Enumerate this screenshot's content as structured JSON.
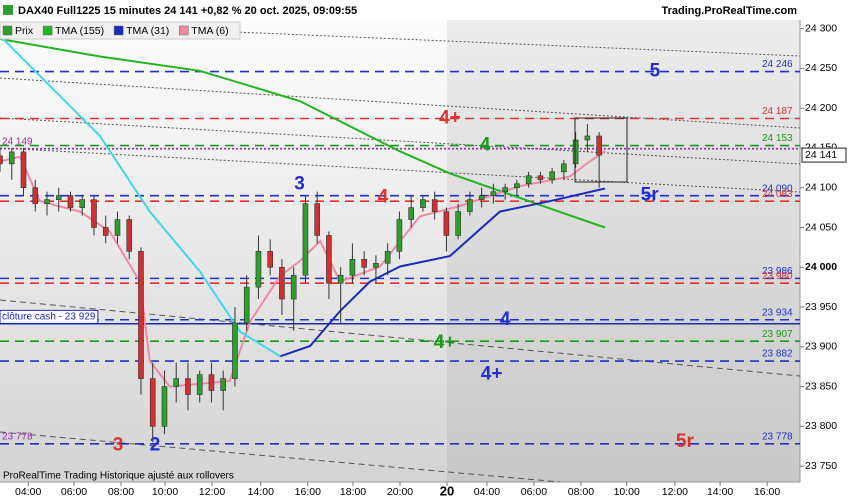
{
  "chart_data": {
    "type": "candlestick",
    "title": "DAX40 Full1225 15 minutes 24 141 +0,82 % 20 oct. 2025, 09:09:55",
    "source": "Trading.ProRealTime.com",
    "footer": "ProRealTime Trading  Historique ajusté aux rollovers",
    "xlim": [
      0,
      136.2
    ],
    "xticks": [
      {
        "value": 4.8,
        "label": "04:00"
      },
      {
        "value": 12.6,
        "label": "06:00"
      },
      {
        "value": 20.6,
        "label": "08:00"
      },
      {
        "value": 28.1,
        "label": "10:00"
      },
      {
        "value": 36.1,
        "label": "12:00"
      },
      {
        "value": 44.4,
        "label": "14:00"
      },
      {
        "value": 52.4,
        "label": "16:00"
      },
      {
        "value": 60.1,
        "label": "18:00"
      },
      {
        "value": 68.1,
        "label": "20:00"
      },
      {
        "value": 76.1,
        "label": "20"
      },
      {
        "value": 82.9,
        "label": "04:00"
      },
      {
        "value": 90.9,
        "label": "06:00"
      },
      {
        "value": 98.9,
        "label": "08:00"
      },
      {
        "value": 106.7,
        "label": "10:00"
      },
      {
        "value": 114.9,
        "label": "12:00"
      },
      {
        "value": 122.6,
        "label": "14:00"
      },
      {
        "value": 130.6,
        "label": "16:00"
      }
    ],
    "ylim": [
      23730,
      24336
    ],
    "yticks": [
      {
        "value": 24300,
        "label": "24 300"
      },
      {
        "value": 24250,
        "label": "24 250"
      },
      {
        "value": 24200,
        "label": "24 200"
      },
      {
        "value": 24150,
        "label": "24 150"
      },
      {
        "value": 24100,
        "label": "24 100"
      },
      {
        "value": 24050,
        "label": "24 050"
      },
      {
        "value": 24000,
        "label": "24 000"
      },
      {
        "value": 23950,
        "label": "23 950"
      },
      {
        "value": 23900,
        "label": "23 900"
      },
      {
        "value": 23850,
        "label": "23 850"
      },
      {
        "value": 23800,
        "label": "23 800"
      },
      {
        "value": 23750,
        "label": "23 750"
      }
    ],
    "candles": {
      "name": "Prix",
      "up_color": "#2e9e2e",
      "down_color": "#d03030",
      "x": [
        0,
        2,
        4,
        6,
        8,
        10,
        12,
        14,
        16,
        18,
        20,
        22,
        24,
        26,
        28,
        30,
        32,
        34,
        36,
        38,
        40,
        42,
        44,
        46,
        48,
        50,
        52,
        54,
        56,
        58,
        60,
        62,
        64,
        66,
        68,
        70,
        72,
        74,
        76,
        78,
        80,
        82,
        84,
        86,
        88,
        90,
        92,
        94,
        96,
        98,
        100,
        102
      ],
      "open": [
        24140,
        24130,
        24145,
        24100,
        24080,
        24085,
        24090,
        24075,
        24085,
        24050,
        24040,
        24060,
        24020,
        23860,
        23800,
        23850,
        23860,
        23840,
        23865,
        23845,
        23860,
        23930,
        23975,
        24020,
        24000,
        23960,
        23990,
        24080,
        24040,
        23980,
        23990,
        24010,
        24000,
        24005,
        24020,
        24060,
        24075,
        24085,
        24070,
        24040,
        24070,
        24085,
        24090,
        24095,
        24100,
        24105,
        24115,
        24110,
        24120,
        24130,
        24160,
        24165
      ],
      "high": [
        24150,
        24150,
        24150,
        24110,
        24095,
        24100,
        24095,
        24090,
        24090,
        24065,
        24070,
        24065,
        24025,
        23880,
        23870,
        23880,
        23880,
        23870,
        23880,
        23870,
        23950,
        23990,
        24040,
        24035,
        24010,
        24000,
        24090,
        24095,
        24045,
        24000,
        24030,
        24020,
        24015,
        24030,
        24070,
        24090,
        24090,
        24095,
        24075,
        24080,
        24095,
        24100,
        24105,
        24105,
        24110,
        24120,
        24120,
        24125,
        24135,
        24170,
        24180,
        24170
      ],
      "low": [
        24120,
        24110,
        24090,
        24070,
        24065,
        24070,
        24070,
        24065,
        24040,
        24030,
        24030,
        24010,
        23840,
        23780,
        23790,
        23830,
        23820,
        23830,
        23830,
        23820,
        23850,
        23920,
        23960,
        23990,
        23940,
        23920,
        23980,
        24030,
        23960,
        23930,
        23980,
        23990,
        23980,
        23990,
        24010,
        24050,
        24070,
        24060,
        24020,
        24035,
        24065,
        24075,
        24080,
        24085,
        24090,
        24100,
        24105,
        24105,
        24110,
        24125,
        24145,
        24100
      ],
      "close": [
        24130,
        24145,
        24100,
        24080,
        24085,
        24090,
        24075,
        24085,
        24050,
        24040,
        24060,
        24020,
        23860,
        23800,
        23850,
        23860,
        23840,
        23865,
        23845,
        23860,
        23930,
        23975,
        24020,
        24000,
        23960,
        23990,
        24080,
        24040,
        23980,
        23990,
        24010,
        24000,
        24005,
        24020,
        24060,
        24075,
        24085,
        24070,
        24040,
        24070,
        24085,
        24090,
        24095,
        24100,
        24105,
        24115,
        24110,
        24120,
        24130,
        24160,
        24165,
        24141
      ]
    },
    "lines": [
      {
        "name": "TMA (155)",
        "color": "#22b422",
        "x": [
          0,
          17,
          34,
          51,
          68,
          76.6,
          85.1,
          93.6,
          103
        ],
        "values": [
          24287,
          24265,
          24247,
          24209,
          24146,
          24118,
          24096,
          24074,
          24050
        ]
      },
      {
        "name": "TMA (31)",
        "color": "#1c2ab8",
        "x": [
          47.7,
          52.8,
          57.9,
          63,
          68.1,
          76.6,
          85.1,
          93.6,
          103
        ],
        "values": [
          23888,
          23901,
          23945,
          23982,
          24001,
          24014,
          24070,
          24083,
          24099
        ]
      },
      {
        "name": "TMA (6)",
        "color": "#f08aa0",
        "x": [
          0,
          3.4,
          6.8,
          13.6,
          18.7,
          23.8,
          25.5,
          28.9,
          39.1,
          42.6,
          47.7,
          51.1,
          54.5,
          57.9,
          64.7,
          71.5,
          78.3,
          88.5,
          97,
          100.4,
          103
        ],
        "values": [
          24133,
          24139,
          24083,
          24070,
          24045,
          23982,
          23882,
          23850,
          23857,
          23932,
          23989,
          24008,
          24033,
          23982,
          24001,
          24064,
          24077,
          24102,
          24114,
          24133,
          24146
        ]
      },
      {
        "color": "#40d8e8",
        "x": [
          0,
          8.5,
          17,
          25.5,
          34,
          40.9,
          47.7
        ],
        "values": [
          24291,
          24228,
          24165,
          24070,
          23995,
          23919,
          23888
        ]
      }
    ],
    "levels": [
      {
        "value": 24246,
        "label": "24 246",
        "color": "#2030d0",
        "style": "dashed",
        "side": "right"
      },
      {
        "value": 24187,
        "label": "24 187",
        "color": "#e03030",
        "style": "dashed",
        "side": "right"
      },
      {
        "value": 24153,
        "label": "24 153",
        "color": "#1a9a1a",
        "style": "dashed",
        "side": "right"
      },
      {
        "value": 24149,
        "label": "24 149",
        "color": "#9a2aa8",
        "style": "dotted",
        "side": "left"
      },
      {
        "value": 24090,
        "label": "24 090",
        "color": "#2030d0",
        "style": "dashed",
        "side": "right"
      },
      {
        "value": 24083,
        "label": "24 083",
        "color": "#e03030",
        "style": "dashed",
        "side": "right"
      },
      {
        "value": 23986,
        "label": "23 986",
        "color": "#2030d0",
        "style": "dashed",
        "side": "right"
      },
      {
        "value": 23980,
        "label": "23 980",
        "color": "#e03030",
        "style": "dashed",
        "side": "right"
      },
      {
        "value": 23934,
        "label": "23 934",
        "color": "#2030d0",
        "style": "dashed",
        "side": "right"
      },
      {
        "value": 23929,
        "label": "clôture cash -  23 929",
        "color": "#1c2ab8",
        "style": "solid",
        "side": "left"
      },
      {
        "value": 23907,
        "label": "23 907",
        "color": "#1a9a1a",
        "style": "dashed",
        "side": "right"
      },
      {
        "value": 23882,
        "label": "23 882",
        "color": "#2030d0",
        "style": "dashed",
        "side": "right"
      },
      {
        "value": 23778,
        "label": "23 778",
        "color": "#2030d0",
        "style": "dashed",
        "side": "right"
      },
      {
        "value": 23778,
        "label": "23 778",
        "color": "#9a2aa8",
        "style": "none",
        "side": "left"
      }
    ],
    "last_price": {
      "value": 24141,
      "label": "24 141"
    },
    "annotations": [
      {
        "text": "5",
        "x": 111.5,
        "y": 24246,
        "color": "#2030d0"
      },
      {
        "text": "4+",
        "x": 76.6,
        "y": 24187,
        "color": "#e03030"
      },
      {
        "text": "4",
        "x": 82.6,
        "y": 24153,
        "color": "#1a9a1a"
      },
      {
        "text": "3",
        "x": 51,
        "y": 24104,
        "color": "#2030d0"
      },
      {
        "text": "4",
        "x": 65.2,
        "y": 24088,
        "color": "#e03030"
      },
      {
        "text": "5r",
        "x": 110.6,
        "y": 24090,
        "color": "#2030d0"
      },
      {
        "text": "4",
        "x": 86,
        "y": 23934,
        "color": "#2030d0"
      },
      {
        "text": "4+",
        "x": 75.7,
        "y": 23905,
        "color": "#1a9a1a"
      },
      {
        "text": "4+",
        "x": 83.7,
        "y": 23865,
        "color": "#2030d0"
      },
      {
        "text": "5r",
        "x": 116.6,
        "y": 23780,
        "color": "#e03030"
      },
      {
        "text": "3",
        "x": 20.1,
        "y": 23776,
        "color": "#e03030"
      },
      {
        "text": "2",
        "x": 26.4,
        "y": 23776,
        "color": "#2030d0"
      }
    ]
  }
}
